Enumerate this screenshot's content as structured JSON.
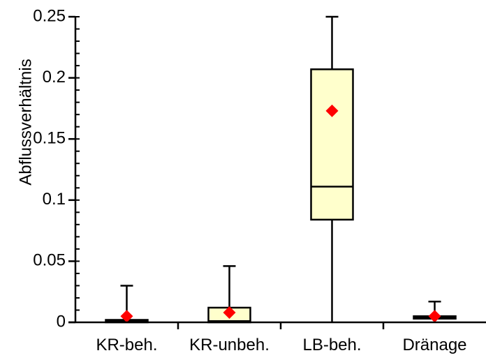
{
  "chart_data": {
    "type": "boxplot",
    "title": "",
    "xlabel": "",
    "ylabel": "Abflussverhältnis",
    "ylim": [
      0,
      0.25
    ],
    "yticks": [
      "0",
      "0.05",
      "0.1",
      "0.15",
      "0.2",
      "0.25"
    ],
    "ytick_values": [
      0,
      0.05,
      0.1,
      0.15,
      0.2,
      0.25
    ],
    "grid": false,
    "categories": [
      "KR-beh.",
      "KR-unbeh.",
      "LB-beh.",
      "Dränage"
    ],
    "boxes": [
      {
        "min": 0,
        "q1": 0,
        "median": 0.001,
        "q3": 0.002,
        "max": 0.03,
        "mean": 0.005
      },
      {
        "min": 0,
        "q1": 0,
        "median": 0.001,
        "q3": 0.012,
        "max": 0.046,
        "mean": 0.008
      },
      {
        "min": 0,
        "q1": 0.084,
        "median": 0.111,
        "q3": 0.207,
        "max": 0.25,
        "mean": 0.173
      },
      {
        "min": 0,
        "q1": 0.003,
        "median": 0.004,
        "q3": 0.005,
        "max": 0.017,
        "mean": 0.005
      }
    ],
    "colors": {
      "box_fill": "#ffffcc",
      "mean_marker": "#ff0000",
      "line": "#000000"
    }
  }
}
